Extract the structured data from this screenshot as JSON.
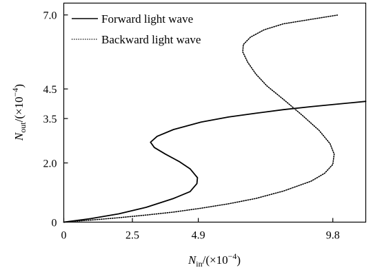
{
  "chart_data": {
    "type": "line",
    "xlabel": {
      "symbol": "N",
      "subscript": "in",
      "unit_prefix": "/(×10",
      "unit_exponent": "−4",
      "unit_suffix": ")"
    },
    "ylabel": {
      "symbol": "N",
      "subscript": "out",
      "unit_prefix": "/(×10",
      "unit_exponent": "−4",
      "unit_suffix": ")"
    },
    "xlim": [
      0,
      11.0
    ],
    "ylim": [
      0,
      7.4
    ],
    "x_ticks": [
      {
        "value": 0,
        "label": "0"
      },
      {
        "value": 2.5,
        "label": "2.5"
      },
      {
        "value": 4.9,
        "label": "4.9"
      },
      {
        "value": 9.8,
        "label": "9.8"
      }
    ],
    "y_ticks": [
      {
        "value": 0,
        "label": "0"
      },
      {
        "value": 2.0,
        "label": "2.0"
      },
      {
        "value": 3.5,
        "label": "3.5"
      },
      {
        "value": 4.5,
        "label": "4.5"
      },
      {
        "value": 7.0,
        "label": "7.0"
      }
    ],
    "grid": false,
    "legend_position": "top-left",
    "series": [
      {
        "name": "Forward light wave",
        "style": "solid",
        "color": "#000000",
        "x": [
          0.0,
          1.0,
          2.0,
          3.0,
          4.0,
          4.6,
          4.85,
          4.87,
          4.6,
          4.2,
          3.7,
          3.3,
          3.16,
          3.4,
          4.0,
          5.0,
          6.0,
          7.0,
          8.0,
          9.0,
          10.0,
          11.0
        ],
        "y": [
          0.0,
          0.12,
          0.28,
          0.5,
          0.8,
          1.03,
          1.3,
          1.5,
          1.8,
          2.05,
          2.3,
          2.52,
          2.7,
          2.9,
          3.13,
          3.38,
          3.55,
          3.68,
          3.8,
          3.9,
          3.99,
          4.08
        ]
      },
      {
        "name": "Backward light wave",
        "style": "dotted",
        "color": "#000000",
        "x": [
          0.0,
          1.0,
          2.0,
          3.0,
          4.0,
          5.0,
          6.0,
          7.0,
          8.0,
          9.0,
          9.5,
          9.8,
          9.85,
          9.7,
          9.3,
          8.7,
          8.0,
          7.4,
          7.0,
          6.7,
          6.52,
          6.54,
          6.8,
          7.3,
          8.0,
          9.0,
          10.0
        ],
        "y": [
          0.0,
          0.07,
          0.15,
          0.24,
          0.34,
          0.47,
          0.62,
          0.8,
          1.05,
          1.38,
          1.65,
          1.95,
          2.3,
          2.65,
          3.1,
          3.6,
          4.15,
          4.6,
          5.0,
          5.4,
          5.75,
          6.0,
          6.25,
          6.5,
          6.7,
          6.85,
          7.0
        ]
      }
    ]
  }
}
